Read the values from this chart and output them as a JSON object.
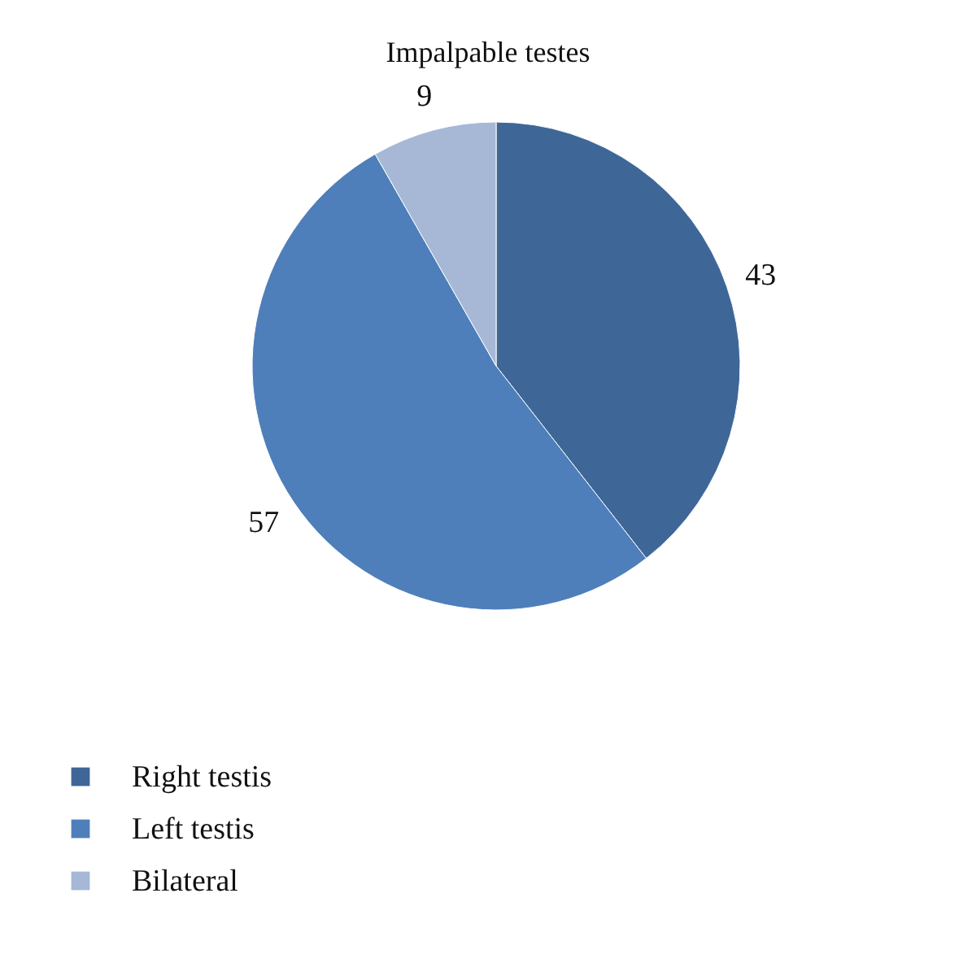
{
  "chart_data": {
    "type": "pie",
    "title": "Impalpable testes",
    "categories": [
      "Right testis",
      "Left testis",
      "Bilateral"
    ],
    "values": [
      43,
      57,
      9
    ],
    "colors": [
      "#3e6797",
      "#4f7fba",
      "#a6b8d6"
    ],
    "data_labels": true,
    "legend": "bottom left"
  }
}
